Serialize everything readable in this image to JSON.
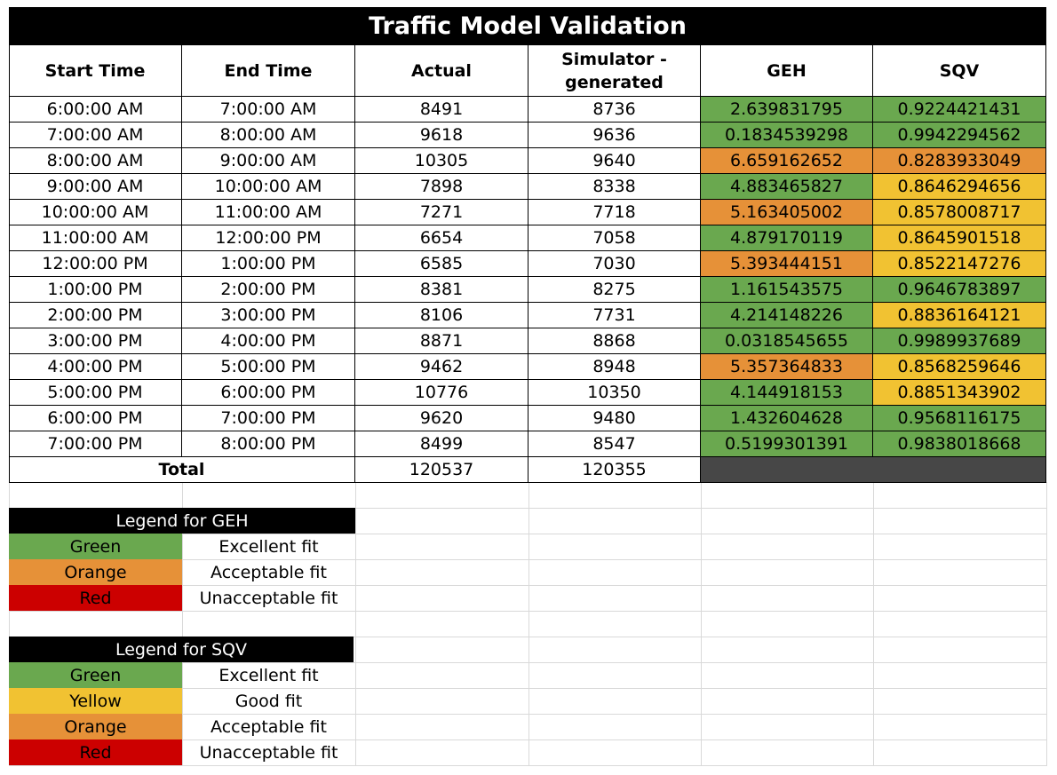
{
  "title": "Traffic Model Validation",
  "headers": {
    "start": "Start Time",
    "end": "End Time",
    "actual": "Actual",
    "sim_line1": "Simulator -",
    "sim_line2": "generated",
    "geh": "GEH",
    "sqv": "SQV"
  },
  "colors": {
    "green": "#6aa84f",
    "orange": "#e69138",
    "yellow": "#f1c232",
    "red": "#cc0000",
    "dark": "#474747"
  },
  "rows": [
    {
      "start": "6:00:00 AM",
      "end": "7:00:00 AM",
      "actual": "8491",
      "sim": "8736",
      "geh": "2.639831795",
      "geh_color": "green",
      "sqv": "0.9224421431",
      "sqv_color": "green"
    },
    {
      "start": "7:00:00 AM",
      "end": "8:00:00 AM",
      "actual": "9618",
      "sim": "9636",
      "geh": "0.1834539298",
      "geh_color": "green",
      "sqv": "0.9942294562",
      "sqv_color": "green"
    },
    {
      "start": "8:00:00 AM",
      "end": "9:00:00 AM",
      "actual": "10305",
      "sim": "9640",
      "geh": "6.659162652",
      "geh_color": "orange",
      "sqv": "0.8283933049",
      "sqv_color": "orange"
    },
    {
      "start": "9:00:00 AM",
      "end": "10:00:00 AM",
      "actual": "7898",
      "sim": "8338",
      "geh": "4.883465827",
      "geh_color": "green",
      "sqv": "0.8646294656",
      "sqv_color": "yellow"
    },
    {
      "start": "10:00:00 AM",
      "end": "11:00:00 AM",
      "actual": "7271",
      "sim": "7718",
      "geh": "5.163405002",
      "geh_color": "orange",
      "sqv": "0.8578008717",
      "sqv_color": "yellow"
    },
    {
      "start": "11:00:00 AM",
      "end": "12:00:00 PM",
      "actual": "6654",
      "sim": "7058",
      "geh": "4.879170119",
      "geh_color": "green",
      "sqv": "0.8645901518",
      "sqv_color": "yellow"
    },
    {
      "start": "12:00:00 PM",
      "end": "1:00:00 PM",
      "actual": "6585",
      "sim": "7030",
      "geh": "5.393444151",
      "geh_color": "orange",
      "sqv": "0.8522147276",
      "sqv_color": "yellow"
    },
    {
      "start": "1:00:00 PM",
      "end": "2:00:00 PM",
      "actual": "8381",
      "sim": "8275",
      "geh": "1.161543575",
      "geh_color": "green",
      "sqv": "0.9646783897",
      "sqv_color": "green"
    },
    {
      "start": "2:00:00 PM",
      "end": "3:00:00 PM",
      "actual": "8106",
      "sim": "7731",
      "geh": "4.214148226",
      "geh_color": "green",
      "sqv": "0.8836164121",
      "sqv_color": "yellow"
    },
    {
      "start": "3:00:00 PM",
      "end": "4:00:00 PM",
      "actual": "8871",
      "sim": "8868",
      "geh": "0.0318545655",
      "geh_color": "green",
      "sqv": "0.9989937689",
      "sqv_color": "green"
    },
    {
      "start": "4:00:00 PM",
      "end": "5:00:00 PM",
      "actual": "9462",
      "sim": "8948",
      "geh": "5.357364833",
      "geh_color": "orange",
      "sqv": "0.8568259646",
      "sqv_color": "yellow"
    },
    {
      "start": "5:00:00 PM",
      "end": "6:00:00 PM",
      "actual": "10776",
      "sim": "10350",
      "geh": "4.144918153",
      "geh_color": "green",
      "sqv": "0.8851343902",
      "sqv_color": "yellow"
    },
    {
      "start": "6:00:00 PM",
      "end": "7:00:00 PM",
      "actual": "9620",
      "sim": "9480",
      "geh": "1.432604628",
      "geh_color": "green",
      "sqv": "0.9568116175",
      "sqv_color": "green"
    },
    {
      "start": "7:00:00 PM",
      "end": "8:00:00 PM",
      "actual": "8499",
      "sim": "8547",
      "geh": "0.5199301391",
      "geh_color": "green",
      "sqv": "0.9838018668",
      "sqv_color": "green"
    }
  ],
  "total": {
    "label": "Total",
    "actual": "120537",
    "sim": "120355"
  },
  "legend_geh": {
    "title": "Legend for GEH",
    "items": [
      {
        "color_name": "Green",
        "color": "green",
        "meaning": "Excellent fit"
      },
      {
        "color_name": "Orange",
        "color": "orange",
        "meaning": "Acceptable fit"
      },
      {
        "color_name": "Red",
        "color": "red",
        "meaning": "Unacceptable fit"
      }
    ]
  },
  "legend_sqv": {
    "title": "Legend for SQV",
    "items": [
      {
        "color_name": "Green",
        "color": "green",
        "meaning": "Excellent fit"
      },
      {
        "color_name": "Yellow",
        "color": "yellow",
        "meaning": "Good fit"
      },
      {
        "color_name": "Orange",
        "color": "orange",
        "meaning": "Acceptable fit"
      },
      {
        "color_name": "Red",
        "color": "red",
        "meaning": "Unacceptable fit"
      }
    ]
  }
}
